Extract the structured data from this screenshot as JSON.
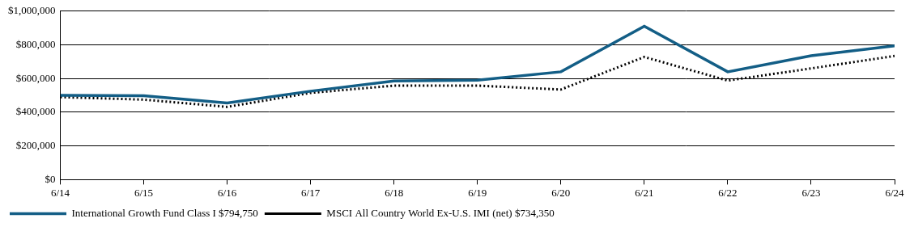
{
  "chart_data": {
    "type": "line",
    "categories": [
      "6/14",
      "6/15",
      "6/16",
      "6/17",
      "6/18",
      "6/19",
      "6/20",
      "6/21",
      "6/22",
      "6/23",
      "6/24"
    ],
    "series": [
      {
        "name": "International Growth Fund Class I $794,750",
        "color": "#135e86",
        "line_style": "solid",
        "values": [
          500000,
          498000,
          455000,
          525000,
          585000,
          590000,
          640000,
          910000,
          640000,
          735000,
          794750
        ]
      },
      {
        "name": "MSCI All Country World Ex-U.S. IMI (net) $734,350",
        "color": "#000000",
        "line_style": "dotted",
        "values": [
          490000,
          475000,
          432000,
          515000,
          558000,
          558000,
          535000,
          728000,
          588000,
          660000,
          734350
        ]
      }
    ],
    "ylim": [
      0,
      1000000
    ],
    "yticks": [
      {
        "value": 0,
        "label": "$0"
      },
      {
        "value": 200000,
        "label": "$200,000"
      },
      {
        "value": 400000,
        "label": "$400,000"
      },
      {
        "value": 600000,
        "label": "$600,000"
      },
      {
        "value": 800000,
        "label": "$800,000"
      },
      {
        "value": 1000000,
        "label": "$1,000,000"
      }
    ],
    "grid": true,
    "legend": "bottom-left"
  }
}
